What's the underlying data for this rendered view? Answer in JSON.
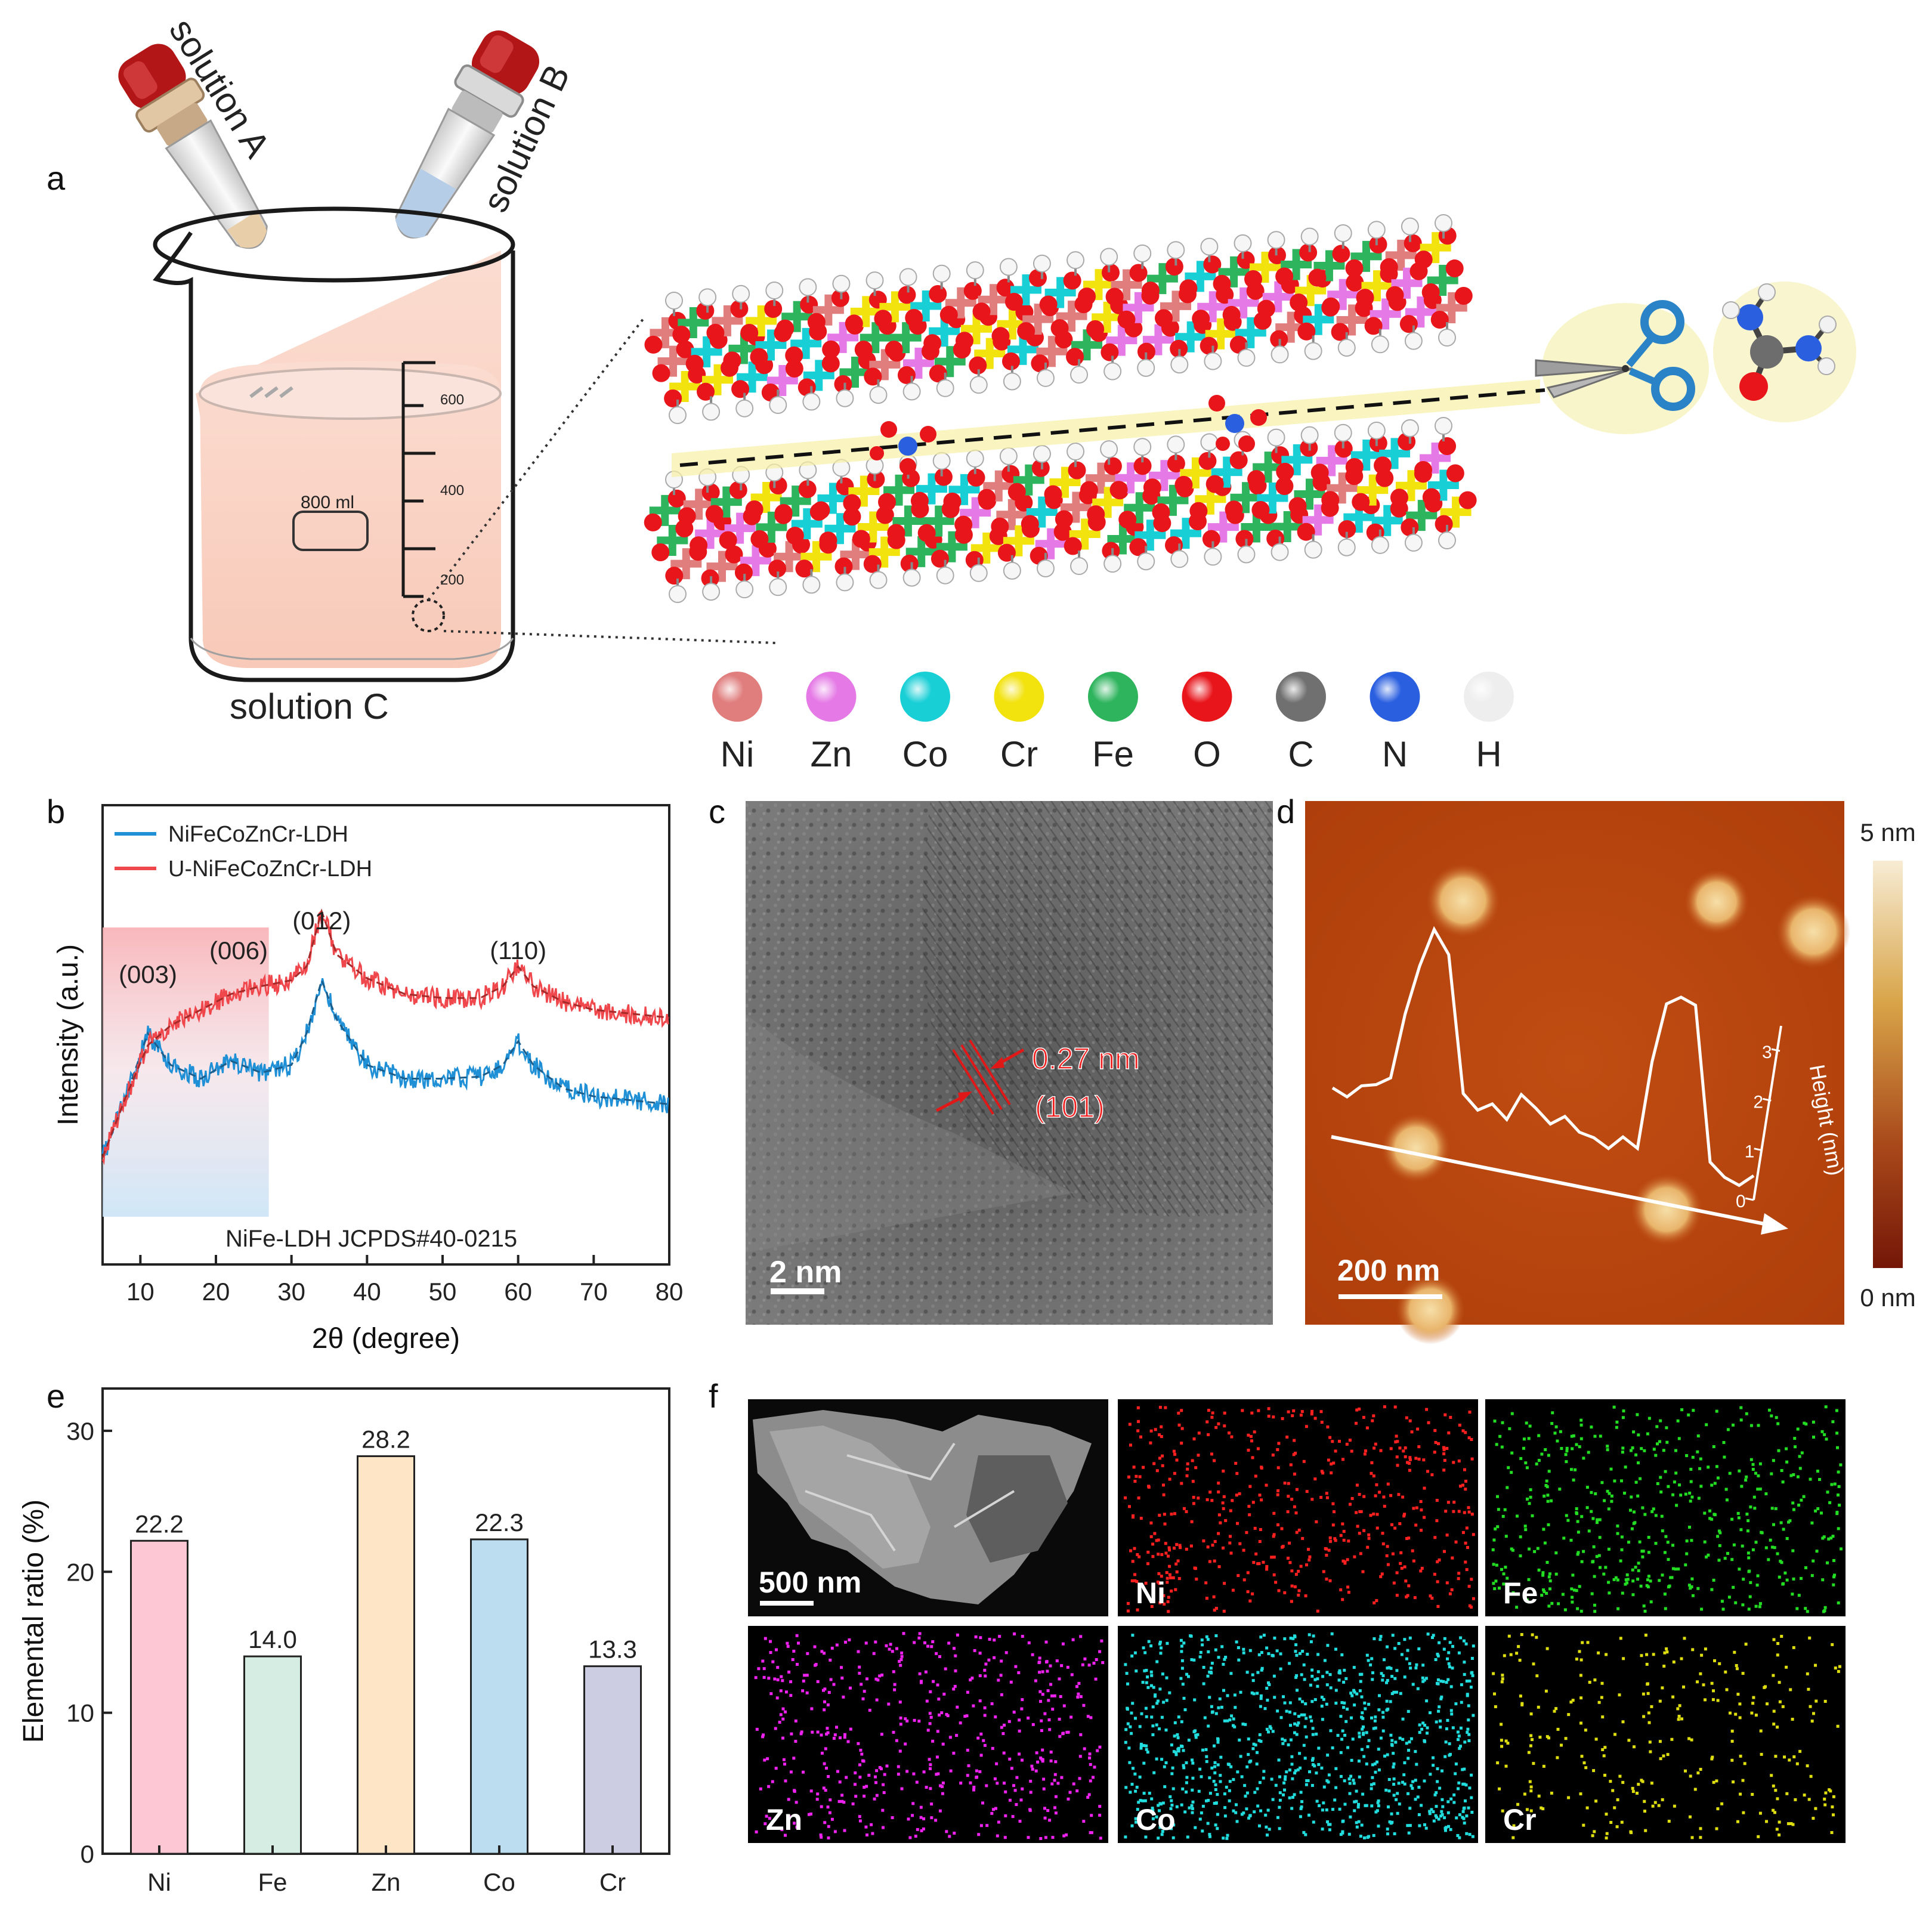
{
  "panel_a": {
    "letter": "a",
    "solution_a": "solution A",
    "solution_b": "solution B",
    "solution_c": "solution C",
    "beaker_volume": "800 ml",
    "graduations": [
      "600",
      "400",
      "200"
    ],
    "element_legend": [
      {
        "symbol": "Ni",
        "color": "#e07d7d"
      },
      {
        "symbol": "Zn",
        "color": "#e57ae6"
      },
      {
        "symbol": "Co",
        "color": "#19cfd6"
      },
      {
        "symbol": "Cr",
        "color": "#f2e20e"
      },
      {
        "symbol": "Fe",
        "color": "#2fb45e"
      },
      {
        "symbol": "O",
        "color": "#e8151b"
      },
      {
        "symbol": "C",
        "color": "#707070"
      },
      {
        "symbol": "N",
        "color": "#2a5fe0"
      },
      {
        "symbol": "H",
        "color": "#eeeeee"
      }
    ]
  },
  "panel_b": {
    "letter": "b",
    "note": "NiFe-LDH  JCPDS#40-0215",
    "peaks": [
      {
        "label": "(003)",
        "x": 11
      },
      {
        "label": "(006)",
        "x": 23
      },
      {
        "label": "(012)",
        "x": 34
      },
      {
        "label": "(110)",
        "x": 60
      }
    ]
  },
  "panel_c": {
    "letter": "c",
    "d_spacing": "0.27 nm",
    "plane": "(101)",
    "scalebar": "2 nm"
  },
  "panel_d": {
    "letter": "d",
    "scalebar": "200 nm",
    "colorbar_max": "5 nm",
    "colorbar_min": "0 nm",
    "profile_axis_title": "Height (nm)",
    "profile_ticks": [
      "0",
      "1",
      "2",
      "3"
    ],
    "profile_heights": [
      1.5,
      1.4,
      1.5,
      1.5,
      1.6,
      2.5,
      3.1,
      3.6,
      3.3,
      1.4,
      1.2,
      1.3,
      1.1,
      1.4,
      1.2,
      1.0,
      1.1,
      0.9,
      0.8,
      0.7,
      0.8,
      0.7,
      1.8,
      2.6,
      2.7,
      2.6,
      0.5,
      0.3,
      0.2,
      0.3
    ]
  },
  "panel_e": {
    "letter": "e"
  },
  "panel_f": {
    "letter": "f",
    "scalebar": "500 nm",
    "maps": [
      {
        "label": "Ni",
        "color": "#ff2020"
      },
      {
        "label": "Fe",
        "color": "#22dd22"
      },
      {
        "label": "Zn",
        "color": "#ee22ee"
      },
      {
        "label": "Co",
        "color": "#22dddd"
      },
      {
        "label": "Cr",
        "color": "#dddd10"
      }
    ]
  },
  "chart_data": [
    {
      "type": "line",
      "xlabel": "2θ (degree)",
      "ylabel": "Intensity (a.u.)",
      "xlim": [
        5,
        80
      ],
      "xticks": [
        10,
        20,
        30,
        40,
        50,
        60,
        70,
        80
      ],
      "legend_position": "top-left",
      "series": [
        {
          "name": "NiFeCoZnCr-LDH",
          "color": "#1f8fd6",
          "x": [
            5,
            8,
            11,
            14,
            18,
            22,
            26,
            30,
            32,
            34,
            36,
            40,
            45,
            50,
            55,
            58,
            60,
            62,
            66,
            70,
            75,
            80
          ],
          "y": [
            0.15,
            0.45,
            0.78,
            0.62,
            0.55,
            0.64,
            0.58,
            0.62,
            0.78,
            1.05,
            0.85,
            0.62,
            0.55,
            0.55,
            0.56,
            0.62,
            0.74,
            0.62,
            0.5,
            0.46,
            0.44,
            0.42
          ]
        },
        {
          "name": "U-NiFeCoZnCr-LDH",
          "color": "#f0474c",
          "x": [
            5,
            8,
            11,
            14,
            18,
            22,
            26,
            30,
            32,
            34,
            36,
            40,
            45,
            50,
            55,
            58,
            60,
            62,
            66,
            70,
            75,
            80
          ],
          "y": [
            0.15,
            0.45,
            0.72,
            0.82,
            0.9,
            0.98,
            1.02,
            1.05,
            1.12,
            1.4,
            1.18,
            1.06,
            0.98,
            0.96,
            0.96,
            1.02,
            1.12,
            1.02,
            0.94,
            0.9,
            0.88,
            0.86
          ]
        }
      ]
    },
    {
      "type": "bar",
      "xlabel": "",
      "ylabel": "Elemental ratio (%)",
      "ylim": [
        0,
        33
      ],
      "yticks": [
        0,
        10,
        20,
        30
      ],
      "categories": [
        "Ni",
        "Fe",
        "Zn",
        "Co",
        "Cr"
      ],
      "values": [
        22.2,
        14.0,
        28.2,
        22.3,
        13.3
      ],
      "value_labels": [
        "22.2",
        "14.0",
        "28.2",
        "22.3",
        "13.3"
      ],
      "colors": [
        "#fdc8d3",
        "#d6ede3",
        "#fde5c6",
        "#bcdcf0",
        "#cccde3"
      ]
    }
  ]
}
